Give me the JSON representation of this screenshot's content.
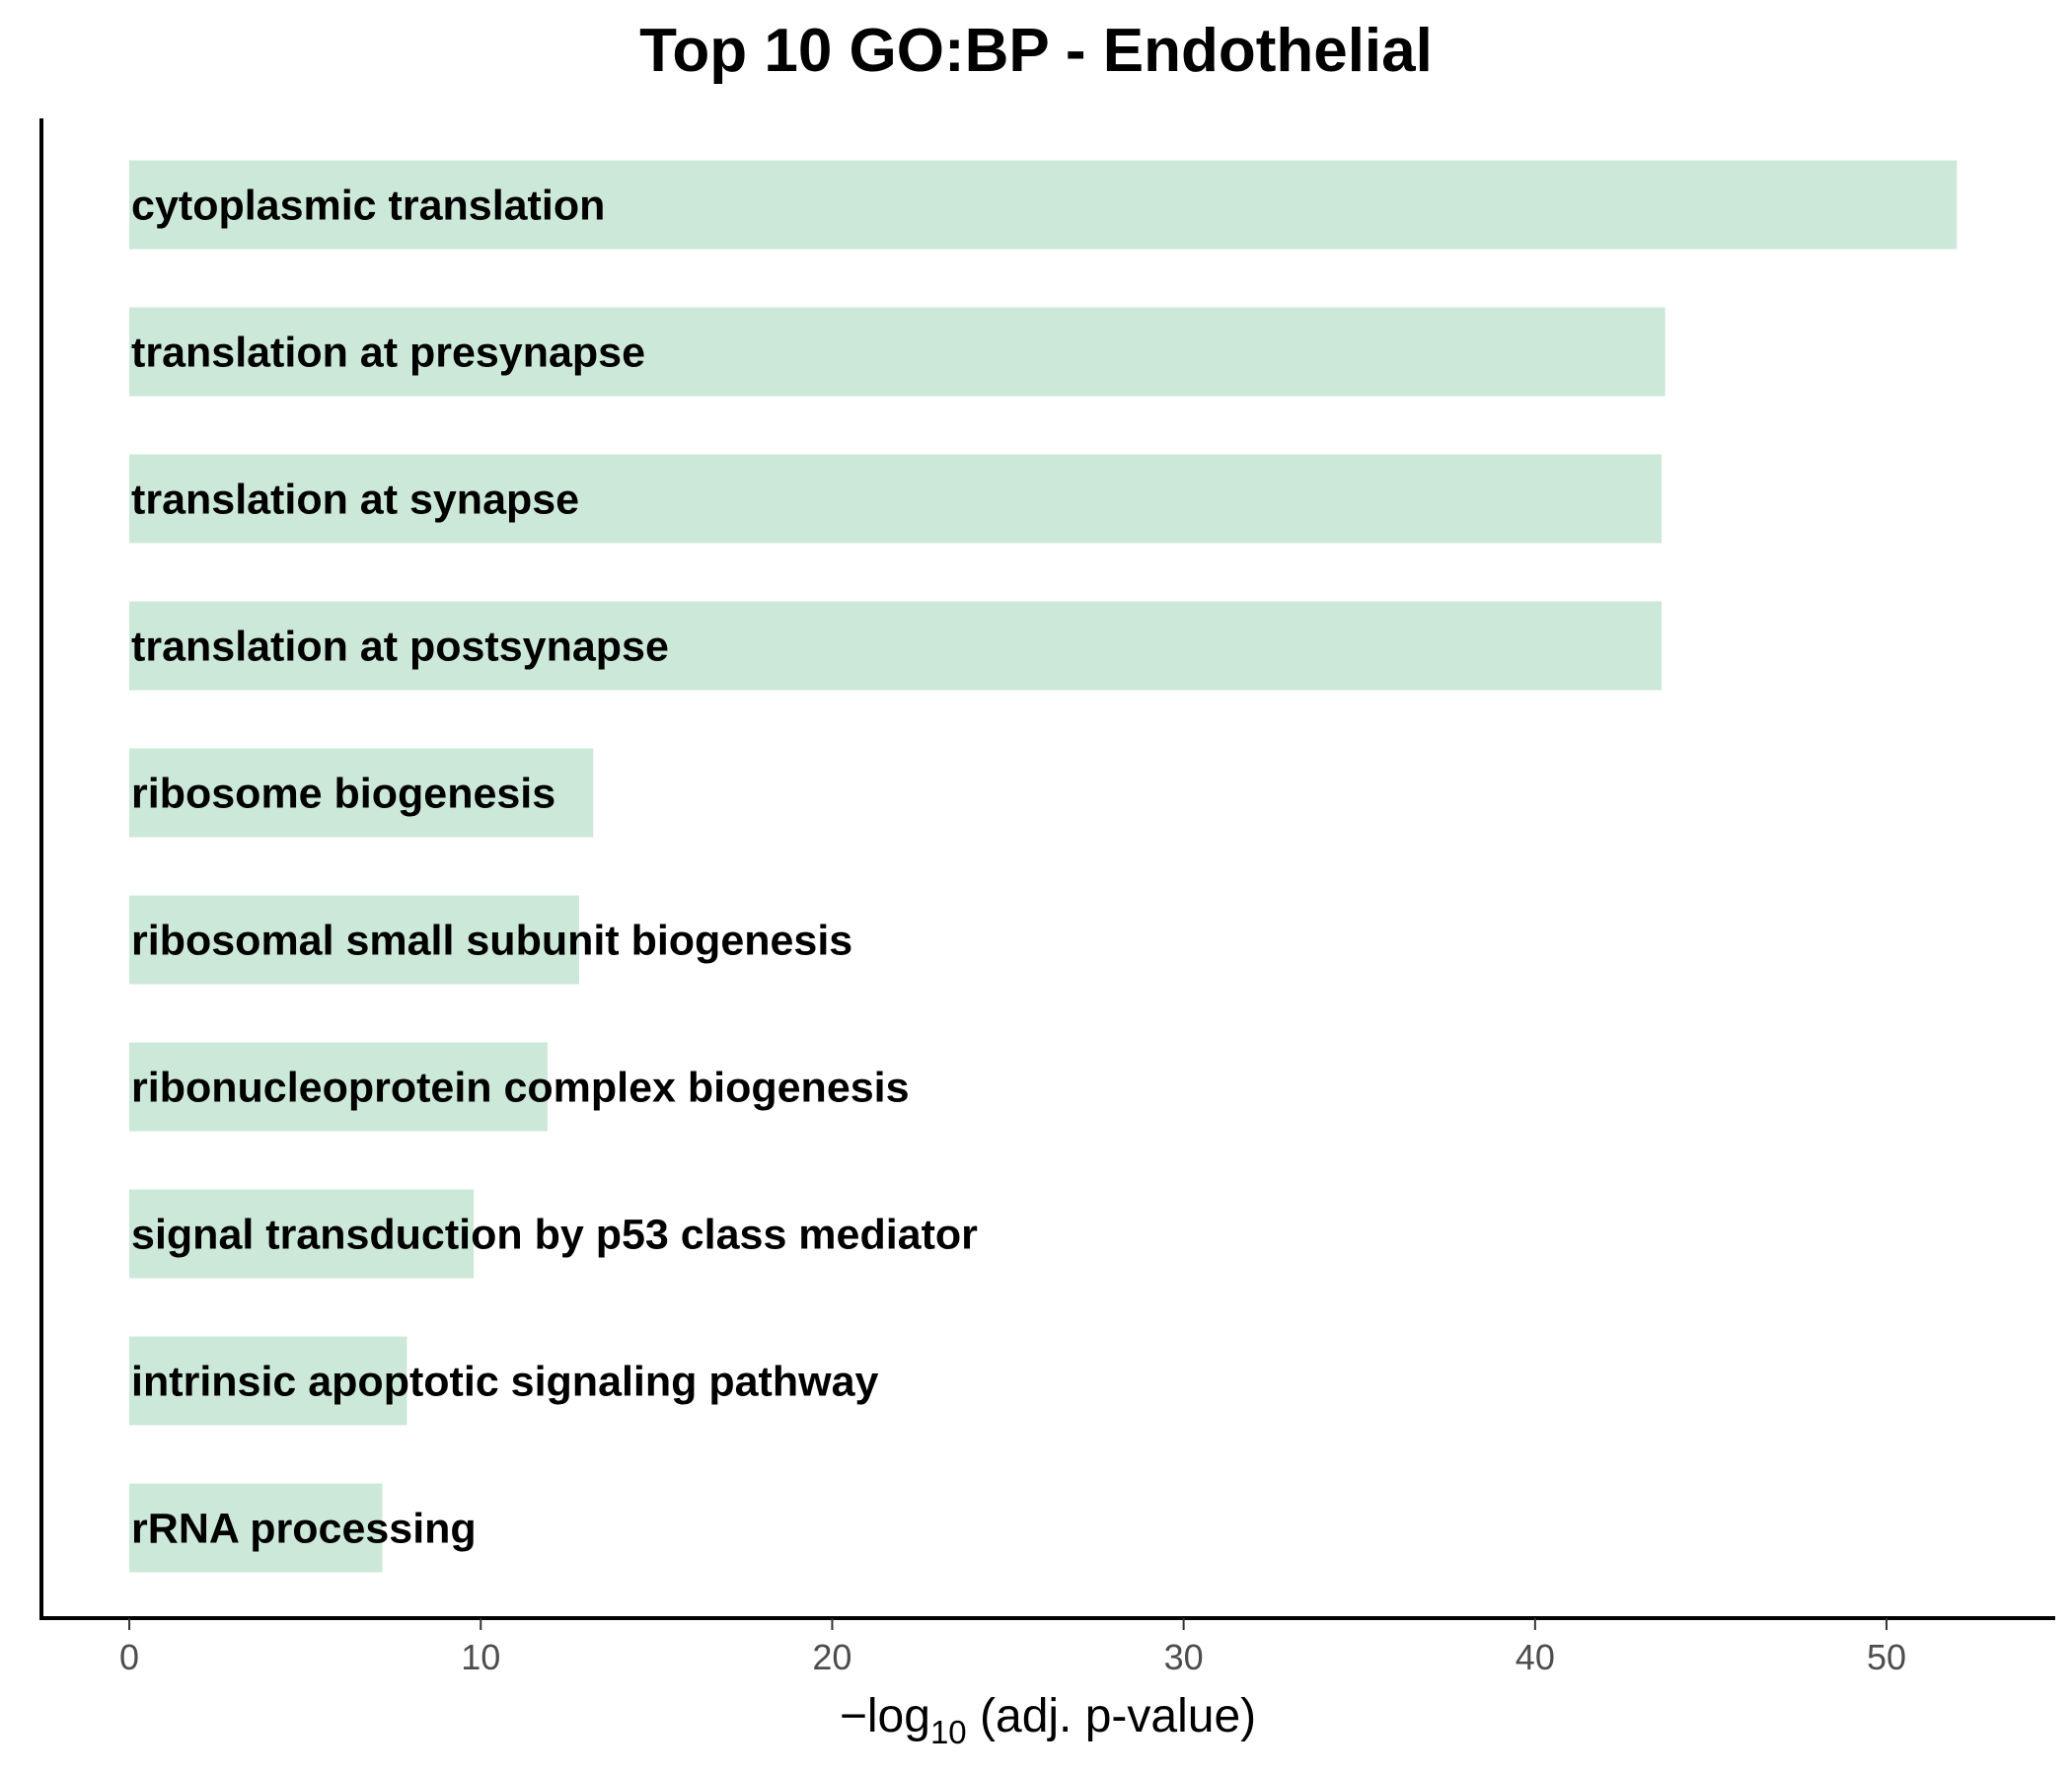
{
  "chart_data": {
    "type": "bar",
    "orientation": "horizontal",
    "title": "Top 10 GO:BP - Endothelial",
    "xlabel": {
      "prefix": "−log",
      "subscript": "10",
      "suffix": " (adj. p-value)"
    },
    "ylabel": "",
    "categories": [
      "cytoplasmic translation",
      "translation at presynapse",
      "translation at synapse",
      "translation at postsynapse",
      "ribosome biogenesis",
      "ribosomal small subunit biogenesis",
      "ribonucleoprotein complex biogenesis",
      "signal transduction by p53 class mediator",
      "intrinsic apoptotic signaling pathway",
      "rRNA processing"
    ],
    "values": [
      52.0,
      43.7,
      43.6,
      43.6,
      13.2,
      12.8,
      11.9,
      9.8,
      7.9,
      7.2
    ],
    "xlim": [
      -2.5,
      54.8
    ],
    "xticks": [
      0,
      10,
      20,
      30,
      40,
      50
    ],
    "xtick_labels": [
      "0",
      "10",
      "20",
      "30",
      "40",
      "50"
    ],
    "bar_color": "#cce8d8",
    "axis_color": "#000000",
    "tick_label_color": "#4d4d4d",
    "grid": false,
    "legend": "none"
  }
}
